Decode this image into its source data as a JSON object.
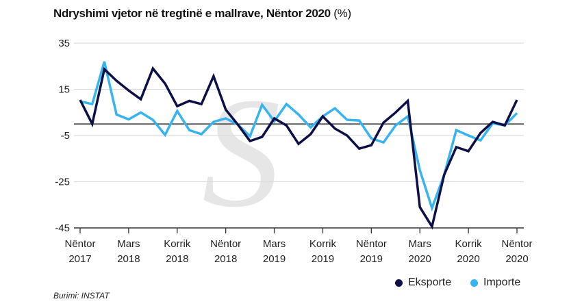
{
  "title": "Ndryshimi vjetor në tregtinë e mallrave, Nëntor 2020",
  "title_unit": "(%)",
  "source": "Burimi: INSTAT",
  "chart_data": {
    "type": "line",
    "title": "Ndryshimi vjetor në tregtinë e mallrave, Nëntor 2020 (%)",
    "ylim": [
      -45,
      35
    ],
    "yticks": [
      35,
      15,
      -5,
      -25,
      -45
    ],
    "grid": true,
    "legend": "bottom-right",
    "xtick_labels": [
      [
        "Nëntor",
        "2017"
      ],
      [
        "Mars",
        "2018"
      ],
      [
        "Korrik",
        "2018"
      ],
      [
        "Nëntor",
        "2018"
      ],
      [
        "Mars",
        "2019"
      ],
      [
        "Korrik",
        "2019"
      ],
      [
        "Nëntor",
        "2019"
      ],
      [
        "Mars",
        "2020"
      ],
      [
        "Korrik",
        "2020"
      ],
      [
        "Nëntor",
        "2020"
      ]
    ],
    "x_start": "Nëntor 2017",
    "x_end": "Nëntor 2020",
    "series": [
      {
        "name": "Eksporte",
        "color": "#0d0f47",
        "values": [
          10.4,
          0,
          23.7,
          18.7,
          14.5,
          10.7,
          24,
          17.5,
          7.7,
          10,
          8.6,
          20.7,
          6.2,
          -0.3,
          -7.4,
          -5.6,
          2.4,
          -0.6,
          -8.6,
          -4.4,
          3.3,
          -2,
          -5,
          -10.7,
          -9.2,
          0.6,
          5,
          10,
          -36,
          -44.4,
          -22,
          -10,
          -11.8,
          -3.9,
          0.9,
          -0.6,
          10.4
        ]
      },
      {
        "name": "Importe",
        "color": "#35b4ef",
        "values": [
          9.8,
          8.6,
          27,
          4.1,
          2,
          5,
          1.8,
          -4.7,
          5.6,
          -2.7,
          -4.4,
          0.9,
          2.4,
          -0.3,
          -5.3,
          8.3,
          1.2,
          8.6,
          4.1,
          -1.5,
          3.3,
          6.8,
          1.8,
          1.5,
          -6.2,
          -8,
          -0.6,
          3.3,
          -20,
          -36.4,
          -22,
          -2.7,
          -5,
          -7.1,
          0.3,
          -0.6,
          4.7
        ]
      }
    ]
  }
}
